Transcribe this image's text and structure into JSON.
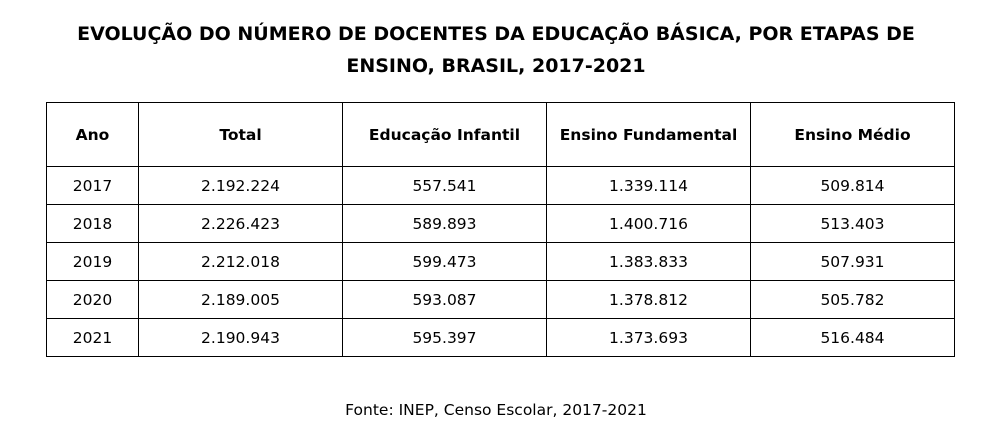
{
  "title": {
    "line1": "EVOLUÇÃO DO NÚMERO DE DOCENTES DA EDUCAÇÃO BÁSICA, POR ETAPAS DE",
    "line2": "ENSINO, BRASIL, 2017-2021"
  },
  "table": {
    "headers": [
      "Ano",
      "Total",
      "Educação Infantil",
      "Ensino Fundamental",
      "Ensino Médio"
    ],
    "rows": [
      [
        "2017",
        "2.192.224",
        "557.541",
        "1.339.114",
        "509.814"
      ],
      [
        "2018",
        "2.226.423",
        "589.893",
        "1.400.716",
        "513.403"
      ],
      [
        "2019",
        "2.212.018",
        "599.473",
        "1.383.833",
        "507.931"
      ],
      [
        "2020",
        "2.189.005",
        "593.087",
        "1.378.812",
        "505.782"
      ],
      [
        "2021",
        "2.190.943",
        "595.397",
        "1.373.693",
        "516.484"
      ]
    ]
  },
  "source": "Fonte: INEP, Censo Escolar, 2017-2021"
}
